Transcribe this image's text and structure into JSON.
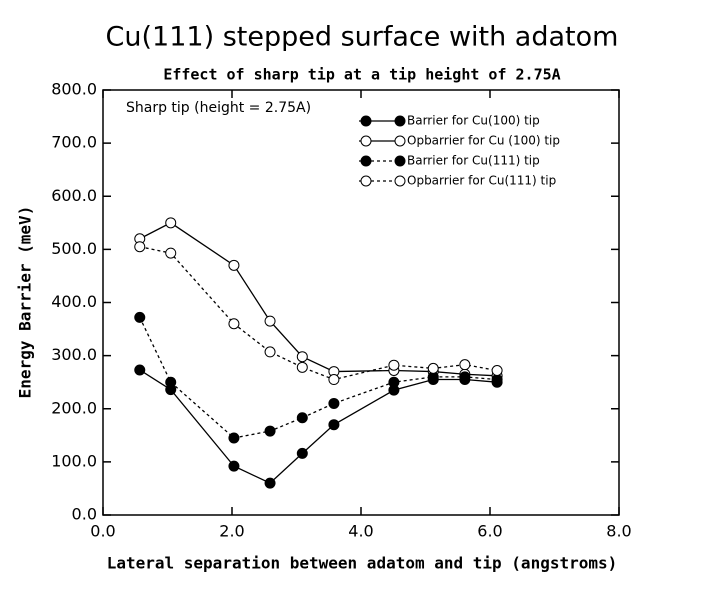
{
  "chart_data": {
    "type": "line",
    "title": "Cu(111) stepped surface with adatom",
    "subtitle": "Effect of sharp tip at a tip height of 2.75A",
    "annotation": "Sharp tip (height = 2.75A)",
    "x_label": "Lateral separation between adatom and tip (angstroms)",
    "y_label": "Energy Barrier (meV)",
    "x": [
      0.57,
      1.05,
      2.03,
      2.59,
      3.09,
      3.58,
      4.51,
      5.12,
      5.61,
      6.11
    ],
    "series": [
      {
        "name": "Barrier for Cu(100) tip",
        "color": "#000000",
        "style": "solid",
        "marker": "filled",
        "values": [
          273,
          236,
          92,
          60,
          116,
          170,
          235,
          255,
          255,
          250
        ]
      },
      {
        "name": "Opbarrier for Cu (100) tip",
        "color": "#000000",
        "style": "solid",
        "marker": "open",
        "values": [
          520,
          550,
          470,
          365,
          298,
          270,
          272,
          270,
          265,
          262
        ]
      },
      {
        "name": "Barrier for Cu(111) tip",
        "color": "#000000",
        "style": "dotted",
        "marker": "filled",
        "values": [
          372,
          250,
          145,
          158,
          183,
          210,
          250,
          260,
          260,
          255
        ]
      },
      {
        "name": "Opbarrier for Cu(111) tip",
        "color": "#000000",
        "style": "dotted",
        "marker": "open",
        "values": [
          505,
          493,
          360,
          307,
          278,
          255,
          282,
          276,
          283,
          272
        ]
      }
    ],
    "xlim": [
      0,
      8
    ],
    "xticks": [
      {
        "value": 0,
        "label": "0.0"
      },
      {
        "value": 2,
        "label": "2.0"
      },
      {
        "value": 4,
        "label": "4.0"
      },
      {
        "value": 6,
        "label": "6.0"
      },
      {
        "value": 8,
        "label": "8.0"
      }
    ],
    "ylim": [
      0,
      800
    ],
    "yticks": [
      {
        "value": 0,
        "label": "0.0"
      },
      {
        "value": 100,
        "label": "100.0"
      },
      {
        "value": 200,
        "label": "200.0"
      },
      {
        "value": 300,
        "label": "300.0"
      },
      {
        "value": 400,
        "label": "400.0"
      },
      {
        "value": 500,
        "label": "500.0"
      },
      {
        "value": 600,
        "label": "600.0"
      },
      {
        "value": 700,
        "label": "700.0"
      },
      {
        "value": 800,
        "label": "800.0"
      }
    ],
    "grid": false
  }
}
